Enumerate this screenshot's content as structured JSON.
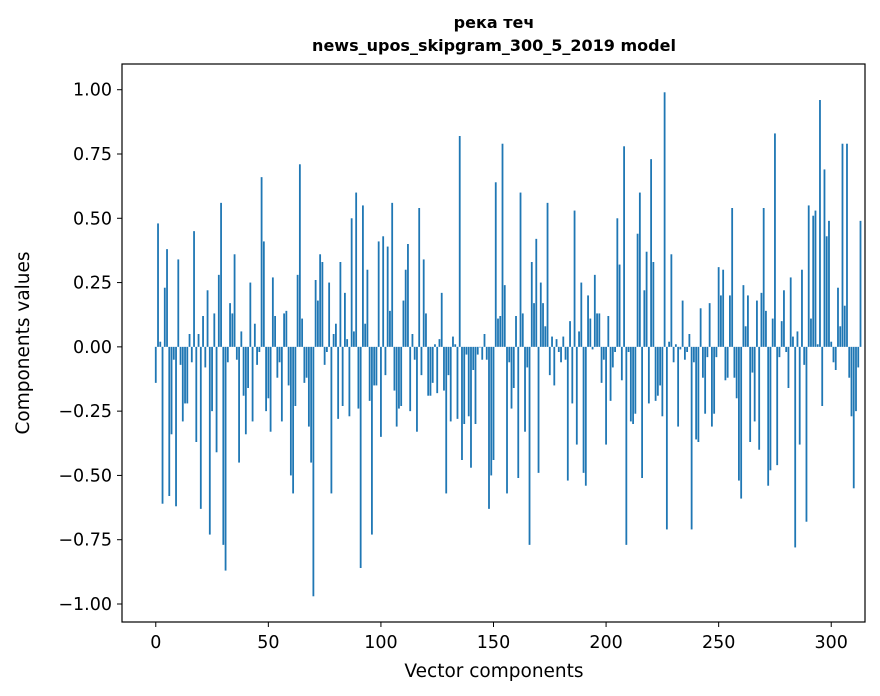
{
  "chart_data": {
    "type": "bar",
    "title": "река теч",
    "subtitle": "news_upos_skipgram_300_5_2019 model",
    "xlabel": "Vector components",
    "ylabel": "Components values",
    "xlim": [
      -15,
      315
    ],
    "ylim": [
      -1.07,
      1.1
    ],
    "xticks": [
      0,
      50,
      100,
      150,
      200,
      250,
      300
    ],
    "xtick_labels": [
      "0",
      "50",
      "100",
      "150",
      "200",
      "250",
      "300"
    ],
    "yticks": [
      -1.0,
      -0.75,
      -0.5,
      -0.25,
      0.0,
      0.25,
      0.5,
      0.75,
      1.0
    ],
    "ytick_labels": [
      "−1.00",
      "−0.75",
      "−0.50",
      "−0.25",
      "0.00",
      "0.25",
      "0.50",
      "0.75",
      "1.00"
    ],
    "grid": false,
    "bar_color": "#1f77b4",
    "values": [
      -0.14,
      0.48,
      0.02,
      -0.61,
      0.23,
      0.38,
      -0.58,
      -0.34,
      -0.05,
      -0.62,
      0.34,
      -0.07,
      -0.29,
      -0.22,
      -0.22,
      0.05,
      -0.06,
      0.45,
      -0.37,
      0.05,
      -0.63,
      0.12,
      -0.08,
      0.22,
      -0.73,
      -0.25,
      0.13,
      -0.41,
      0.28,
      0.56,
      -0.77,
      -0.87,
      -0.06,
      0.17,
      0.13,
      0.36,
      -0.05,
      -0.45,
      0.06,
      -0.19,
      -0.34,
      -0.16,
      0.25,
      -0.29,
      0.09,
      -0.07,
      -0.02,
      0.66,
      0.41,
      -0.25,
      -0.2,
      -0.33,
      0.27,
      0.12,
      -0.12,
      -0.06,
      -0.29,
      0.13,
      0.14,
      -0.15,
      -0.5,
      -0.57,
      -0.23,
      0.28,
      0.71,
      0.11,
      -0.14,
      -0.12,
      -0.31,
      -0.45,
      -0.97,
      0.26,
      0.18,
      0.36,
      0.33,
      -0.07,
      -0.02,
      0.25,
      -0.57,
      0.05,
      0.09,
      -0.28,
      0.33,
      -0.23,
      0.21,
      0.03,
      -0.27,
      0.5,
      0.06,
      0.6,
      -0.24,
      -0.86,
      0.55,
      0.09,
      0.3,
      -0.21,
      -0.73,
      -0.15,
      -0.15,
      0.41,
      -0.35,
      0.43,
      -0.11,
      0.39,
      0.14,
      0.56,
      -0.17,
      -0.31,
      -0.24,
      -0.23,
      0.18,
      0.3,
      0.4,
      -0.25,
      0.05,
      -0.05,
      -0.33,
      0.54,
      -0.11,
      0.34,
      0.13,
      -0.19,
      -0.19,
      -0.14,
      0.01,
      -0.18,
      0.03,
      0.21,
      -0.17,
      -0.57,
      -0.11,
      -0.29,
      0.04,
      0.01,
      -0.28,
      0.82,
      -0.44,
      -0.3,
      -0.03,
      -0.27,
      -0.47,
      -0.09,
      -0.3,
      -0.03,
      0.0,
      -0.05,
      0.05,
      -0.05,
      -0.63,
      -0.5,
      -0.44,
      0.64,
      0.11,
      0.12,
      0.79,
      0.24,
      -0.57,
      -0.06,
      -0.24,
      -0.16,
      0.12,
      -0.51,
      0.6,
      0.13,
      -0.33,
      -0.08,
      -0.77,
      0.33,
      0.17,
      0.42,
      -0.49,
      0.25,
      0.17,
      0.08,
      0.56,
      -0.11,
      0.04,
      -0.15,
      0.03,
      -0.02,
      -0.06,
      0.04,
      -0.05,
      -0.52,
      0.1,
      -0.22,
      0.53,
      -0.38,
      0.06,
      0.25,
      -0.49,
      -0.54,
      0.2,
      0.11,
      -0.01,
      0.28,
      0.13,
      0.13,
      -0.14,
      -0.05,
      -0.38,
      0.12,
      -0.21,
      -0.08,
      -0.02,
      0.5,
      0.32,
      -0.13,
      0.78,
      -0.77,
      -0.02,
      -0.29,
      -0.3,
      -0.26,
      0.44,
      0.6,
      -0.51,
      0.22,
      0.37,
      -0.22,
      0.73,
      0.33,
      -0.21,
      -0.19,
      -0.15,
      -0.27,
      0.99,
      -0.71,
      0.02,
      0.36,
      -0.06,
      0.01,
      -0.31,
      -0.01,
      0.18,
      -0.05,
      -0.02,
      0.05,
      -0.71,
      -0.06,
      -0.36,
      -0.37,
      0.15,
      -0.12,
      -0.26,
      -0.04,
      0.17,
      -0.31,
      -0.26,
      -0.04,
      0.31,
      0.2,
      0.3,
      -0.13,
      -0.12,
      0.2,
      0.54,
      -0.12,
      -0.2,
      -0.52,
      -0.59,
      0.24,
      0.08,
      0.2,
      -0.37,
      -0.1,
      -0.29,
      0.18,
      -0.4,
      0.21,
      0.54,
      0.14,
      -0.54,
      -0.48,
      0.11,
      0.83,
      -0.46,
      -0.04,
      0.1,
      0.22,
      -0.02,
      -0.16,
      0.27,
      0.04,
      -0.78,
      0.06,
      -0.38,
      0.3,
      -0.07,
      -0.68,
      0.55,
      0.11,
      0.51,
      0.53,
      0.01,
      0.96,
      -0.23,
      0.69,
      0.43,
      0.49,
      0.02,
      -0.06,
      -0.09,
      0.23,
      0.08,
      0.79,
      0.16,
      0.79,
      -0.12,
      -0.27,
      -0.55,
      -0.25,
      -0.08,
      0.49
    ]
  }
}
